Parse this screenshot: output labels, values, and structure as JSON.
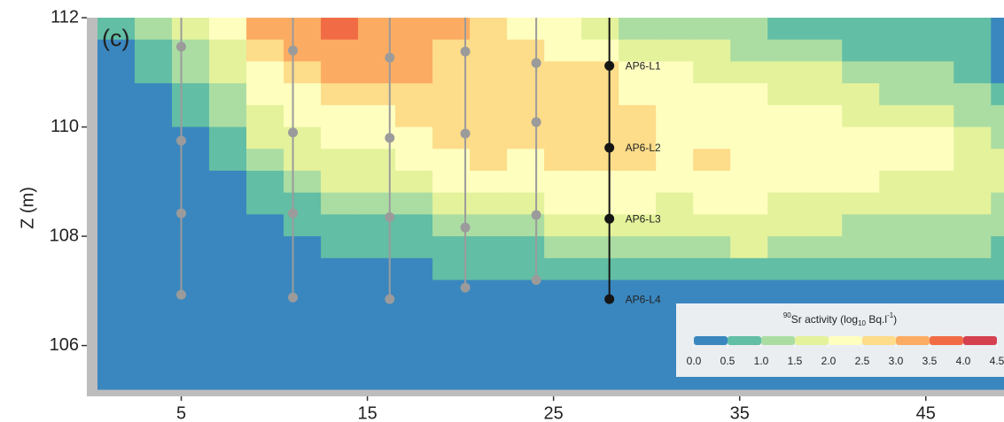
{
  "chart_data": {
    "type": "heatmap",
    "panel_label": "(c)",
    "ylabel": "Z (m)",
    "xlim": [
      0.5,
      49.2
    ],
    "ylim": [
      105.2,
      112
    ],
    "xticks": [
      5,
      15,
      25,
      35,
      45
    ],
    "yticks": [
      106,
      108,
      110,
      112
    ],
    "field": {
      "x": [
        1.5,
        3.5,
        5.5,
        7.5,
        9.5,
        11.5,
        13.5,
        15.5,
        17.5,
        19.5,
        21.5,
        23.5,
        25.5,
        27.5,
        29.5,
        31.5,
        33.5,
        35.5,
        37.5,
        39.5,
        41.5,
        43.5,
        45.5,
        47.5,
        49.5
      ],
      "z": [
        111.8,
        111.4,
        111.0,
        110.6,
        110.2,
        109.8,
        109.4,
        109.0,
        108.6,
        108.2,
        107.8,
        107.4,
        107.0,
        106.6,
        106.2,
        105.8,
        105.4
      ],
      "values": [
        [
          0.7,
          0.2,
          0.2,
          0.2,
          0.2,
          0.2,
          0.2,
          0.2,
          0.2,
          0.2,
          0.2,
          0.2,
          0.2,
          0.2,
          0.2,
          0.2,
          0.2
        ],
        [
          1.2,
          0.7,
          0.7,
          0.2,
          0.2,
          0.2,
          0.2,
          0.2,
          0.2,
          0.2,
          0.2,
          0.2,
          0.2,
          0.2,
          0.2,
          0.2,
          0.2
        ],
        [
          1.7,
          1.2,
          1.2,
          0.7,
          0.7,
          0.2,
          0.2,
          0.2,
          0.2,
          0.2,
          0.2,
          0.2,
          0.2,
          0.2,
          0.2,
          0.2,
          0.2
        ],
        [
          2.2,
          1.7,
          1.7,
          1.2,
          1.2,
          0.7,
          0.7,
          0.2,
          0.2,
          0.2,
          0.2,
          0.2,
          0.2,
          0.2,
          0.2,
          0.2,
          0.2
        ],
        [
          3.2,
          2.7,
          2.2,
          2.2,
          1.7,
          1.7,
          1.2,
          0.7,
          0.7,
          0.2,
          0.2,
          0.2,
          0.2,
          0.2,
          0.2,
          0.2,
          0.2
        ],
        [
          3.2,
          3.2,
          2.7,
          2.2,
          2.2,
          1.7,
          1.7,
          1.2,
          0.7,
          0.7,
          0.2,
          0.2,
          0.2,
          0.2,
          0.2,
          0.2,
          0.2
        ],
        [
          3.7,
          3.2,
          3.2,
          2.7,
          2.2,
          2.2,
          1.7,
          1.7,
          1.2,
          0.7,
          0.7,
          0.2,
          0.2,
          0.2,
          0.2,
          0.2,
          0.2
        ],
        [
          3.2,
          3.2,
          3.2,
          2.7,
          2.2,
          2.2,
          1.7,
          1.7,
          1.2,
          0.7,
          0.7,
          0.2,
          0.2,
          0.2,
          0.2,
          0.2,
          0.2
        ],
        [
          3.2,
          3.2,
          3.2,
          2.7,
          2.7,
          2.2,
          2.2,
          1.7,
          1.2,
          0.7,
          0.7,
          0.2,
          0.2,
          0.2,
          0.2,
          0.2,
          0.2
        ],
        [
          3.2,
          2.7,
          2.7,
          2.7,
          2.7,
          2.7,
          2.2,
          2.2,
          1.7,
          1.2,
          0.7,
          0.7,
          0.2,
          0.2,
          0.2,
          0.2,
          0.2
        ],
        [
          2.7,
          2.7,
          2.7,
          2.7,
          2.7,
          2.7,
          2.7,
          2.2,
          1.7,
          1.2,
          0.7,
          0.7,
          0.2,
          0.2,
          0.2,
          0.2,
          0.2
        ],
        [
          2.2,
          2.7,
          2.7,
          2.7,
          2.7,
          2.7,
          2.2,
          2.2,
          1.7,
          1.2,
          0.7,
          0.7,
          0.2,
          0.2,
          0.2,
          0.2,
          0.2
        ],
        [
          2.2,
          2.2,
          2.7,
          2.7,
          2.7,
          2.7,
          2.7,
          2.2,
          2.2,
          1.7,
          1.2,
          0.7,
          0.2,
          0.2,
          0.2,
          0.2,
          0.2
        ],
        [
          1.7,
          2.2,
          2.7,
          2.7,
          2.7,
          2.7,
          2.7,
          2.2,
          2.2,
          1.7,
          1.2,
          0.7,
          0.2,
          0.2,
          0.2,
          0.2,
          0.2
        ],
        [
          1.2,
          1.7,
          2.2,
          2.2,
          2.7,
          2.7,
          2.7,
          2.2,
          2.2,
          1.7,
          1.2,
          0.7,
          0.2,
          0.2,
          0.2,
          0.2,
          0.2
        ],
        [
          1.2,
          1.7,
          2.2,
          2.2,
          2.2,
          2.2,
          2.2,
          2.2,
          1.7,
          1.7,
          1.2,
          0.7,
          0.2,
          0.2,
          0.2,
          0.2,
          0.2
        ],
        [
          1.2,
          1.7,
          1.7,
          2.2,
          2.2,
          2.2,
          2.7,
          2.2,
          2.2,
          1.7,
          1.2,
          0.7,
          0.2,
          0.2,
          0.2,
          0.2,
          0.2
        ],
        [
          1.2,
          1.2,
          1.7,
          2.2,
          2.2,
          2.2,
          2.2,
          2.2,
          2.2,
          1.7,
          1.7,
          0.7,
          0.2,
          0.2,
          0.2,
          0.2,
          0.2
        ],
        [
          0.7,
          1.2,
          1.7,
          1.7,
          2.2,
          2.2,
          2.2,
          2.2,
          1.7,
          1.7,
          1.2,
          0.7,
          0.2,
          0.2,
          0.2,
          0.2,
          0.2
        ],
        [
          0.7,
          1.2,
          1.7,
          1.7,
          2.2,
          2.2,
          2.2,
          2.2,
          1.7,
          1.7,
          1.2,
          0.7,
          0.2,
          0.2,
          0.2,
          0.2,
          0.2
        ],
        [
          0.7,
          0.7,
          1.2,
          1.7,
          1.7,
          2.2,
          2.2,
          2.2,
          1.7,
          1.2,
          1.2,
          0.7,
          0.2,
          0.2,
          0.2,
          0.2,
          0.2
        ],
        [
          0.7,
          0.7,
          1.2,
          1.2,
          1.7,
          2.2,
          2.2,
          1.7,
          1.7,
          1.2,
          1.2,
          0.7,
          0.2,
          0.2,
          0.2,
          0.2,
          0.2
        ],
        [
          0.7,
          0.7,
          1.2,
          1.2,
          1.7,
          2.2,
          2.2,
          1.7,
          1.7,
          1.2,
          1.2,
          0.7,
          0.2,
          0.2,
          0.2,
          0.2,
          0.2
        ],
        [
          0.7,
          0.7,
          0.7,
          1.2,
          1.2,
          1.7,
          1.7,
          1.7,
          1.7,
          1.2,
          1.2,
          0.7,
          0.2,
          0.2,
          0.2,
          0.2,
          0.2
        ],
        [
          0.2,
          0.2,
          0.2,
          0.7,
          1.2,
          1.2,
          1.7,
          1.7,
          1.2,
          1.2,
          0.7,
          0.7,
          0.2,
          0.2,
          0.2,
          0.2,
          0.2
        ]
      ]
    },
    "colorbar": {
      "title_parts": [
        "90",
        "Sr activity (log",
        "10",
        " Bq.l",
        "-1",
        ")"
      ],
      "breaks": [
        {
          "value": 0,
          "label": "0.0"
        },
        {
          "value": 0.5,
          "label": "0.5"
        },
        {
          "value": 1,
          "label": "1.0"
        },
        {
          "value": 1.5,
          "label": "1.5"
        },
        {
          "value": 2,
          "label": "2.0"
        },
        {
          "value": 2.5,
          "label": "2.5"
        },
        {
          "value": 3,
          "label": "3.0"
        },
        {
          "value": 3.5,
          "label": "3.5"
        },
        {
          "value": 4,
          "label": "4.0"
        },
        {
          "value": 4.5,
          "label": "4.5"
        }
      ],
      "colors": [
        "#3a87bf",
        "#62bea4",
        "#abdda3",
        "#e4f29b",
        "#fefebf",
        "#fddc8a",
        "#fcac62",
        "#f16c45",
        "#d5404f"
      ]
    },
    "wells": [
      {
        "color": "#9b9b9b",
        "x": 5.0,
        "z": [
          111.47,
          109.75,
          108.42,
          106.93
        ]
      },
      {
        "color": "#9b9b9b",
        "x": 11.0,
        "z": [
          111.4,
          109.9,
          108.42,
          106.88
        ]
      },
      {
        "color": "#9b9b9b",
        "x": 16.2,
        "z": [
          111.27,
          109.8,
          108.35,
          106.85
        ]
      },
      {
        "color": "#9b9b9b",
        "x": 20.26,
        "z": [
          111.38,
          109.88,
          108.16,
          107.06
        ]
      },
      {
        "color": "#9b9b9b",
        "x": 24.07,
        "z": [
          111.17,
          110.09,
          108.39,
          107.2
        ]
      },
      {
        "color": "#151515",
        "x": 28.0,
        "z": [
          111.12,
          109.62,
          108.32,
          106.85
        ],
        "labels": [
          "AP6-L1",
          "AP6-L2",
          "AP6-L3",
          "AP6-L4"
        ]
      }
    ]
  }
}
